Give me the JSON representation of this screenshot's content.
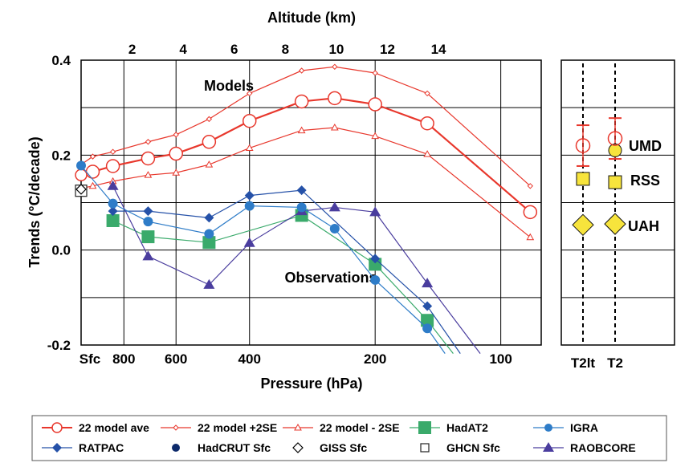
{
  "chart_data": {
    "type": "line",
    "xlabel": "Pressure (hPa)",
    "x2label": "Altitude (km)",
    "ylabel": "Trends (°C/decade)",
    "ylim": [
      -0.2,
      0.4
    ],
    "yticks": [
      {
        "value": 0.4,
        "label": "0.4"
      },
      {
        "value": 0.2,
        "label": "0.2"
      },
      {
        "value": 0.0,
        "label": "0.0"
      },
      {
        "value": -0.2,
        "label": "-0.2"
      }
    ],
    "xlim_hpa": [
      1013,
      80
    ],
    "xticks": [
      {
        "value": 1013,
        "label": "Sfc"
      },
      {
        "value": 800,
        "label": "800"
      },
      {
        "value": 600,
        "label": "600"
      },
      {
        "value": 400,
        "label": "400"
      },
      {
        "value": 200,
        "label": "200"
      },
      {
        "value": 100,
        "label": "100"
      }
    ],
    "x2ticks": [
      {
        "value": 2,
        "label": "2"
      },
      {
        "value": 4,
        "label": "4"
      },
      {
        "value": 6,
        "label": "6"
      },
      {
        "value": 8,
        "label": "8"
      },
      {
        "value": 10,
        "label": "10"
      },
      {
        "value": 12,
        "label": "12"
      },
      {
        "value": 14,
        "label": "14"
      }
    ],
    "annotations": {
      "models": "Models",
      "observations": "Observations"
    },
    "series": [
      {
        "name": "22 model ave",
        "color": "#e8372c",
        "marker": "circle-open-large",
        "line": "thick",
        "points": [
          [
            1013,
            0.158
          ],
          [
            950,
            0.165
          ],
          [
            850,
            0.177
          ],
          [
            700,
            0.193
          ],
          [
            600,
            0.203
          ],
          [
            500,
            0.228
          ],
          [
            400,
            0.272
          ],
          [
            300,
            0.313
          ],
          [
            250,
            0.32
          ],
          [
            200,
            0.307
          ],
          [
            150,
            0.267
          ],
          [
            85,
            0.08
          ]
        ]
      },
      {
        "name": "22 model +2SE",
        "color": "#e8372c",
        "marker": "diamond-open-small",
        "line": "thin",
        "points": [
          [
            1013,
            0.18
          ],
          [
            950,
            0.197
          ],
          [
            850,
            0.207
          ],
          [
            700,
            0.228
          ],
          [
            600,
            0.243
          ],
          [
            500,
            0.276
          ],
          [
            400,
            0.33
          ],
          [
            300,
            0.378
          ],
          [
            250,
            0.386
          ],
          [
            200,
            0.373
          ],
          [
            150,
            0.33
          ],
          [
            85,
            0.135
          ]
        ]
      },
      {
        "name": "22 model - 2SE",
        "color": "#e8372c",
        "marker": "triangle-open-small",
        "line": "thin",
        "points": [
          [
            1013,
            0.13
          ],
          [
            950,
            0.135
          ],
          [
            850,
            0.145
          ],
          [
            700,
            0.158
          ],
          [
            600,
            0.163
          ],
          [
            500,
            0.18
          ],
          [
            400,
            0.215
          ],
          [
            300,
            0.252
          ],
          [
            250,
            0.258
          ],
          [
            200,
            0.24
          ],
          [
            150,
            0.202
          ],
          [
            85,
            0.027
          ]
        ]
      },
      {
        "name": "HadAT2",
        "color": "#3aaa6b",
        "marker": "square-filled",
        "line": "thin",
        "points": [
          [
            850,
            0.062
          ],
          [
            700,
            0.028
          ],
          [
            500,
            0.016
          ],
          [
            300,
            0.073
          ],
          [
            200,
            -0.03
          ],
          [
            150,
            -0.148
          ],
          [
            130,
            -0.218
          ]
        ]
      },
      {
        "name": "IGRA",
        "color": "#2e7cc8",
        "marker": "circle-filled",
        "line": "thin",
        "points": [
          [
            1013,
            0.178
          ],
          [
            850,
            0.098
          ],
          [
            700,
            0.06
          ],
          [
            500,
            0.034
          ],
          [
            400,
            0.093
          ],
          [
            300,
            0.09
          ],
          [
            250,
            0.045
          ],
          [
            200,
            -0.063
          ],
          [
            150,
            -0.165
          ],
          [
            136,
            -0.218
          ]
        ]
      },
      {
        "name": "RATPAC",
        "color": "#2551a8",
        "marker": "diamond-filled",
        "line": "thin",
        "points": [
          [
            850,
            0.082
          ],
          [
            700,
            0.082
          ],
          [
            500,
            0.068
          ],
          [
            400,
            0.115
          ],
          [
            300,
            0.126
          ],
          [
            200,
            -0.018
          ],
          [
            150,
            -0.118
          ],
          [
            125,
            -0.218
          ]
        ]
      },
      {
        "name": "HadCRUT Sfc",
        "color": "#0d2a6b",
        "marker": "circle-filled-dark",
        "line": "none",
        "points": [
          [
            1013,
            0.125
          ]
        ]
      },
      {
        "name": "GISS Sfc",
        "color": "#000000",
        "marker": "diamond-open",
        "line": "none",
        "points": [
          [
            1013,
            0.128
          ]
        ]
      },
      {
        "name": "GHCN Sfc",
        "color": "#222222",
        "marker": "square-open",
        "line": "none",
        "points": [
          [
            1013,
            0.125
          ]
        ]
      },
      {
        "name": "RAOBCORE",
        "color": "#4a3d9e",
        "marker": "triangle-filled",
        "line": "thin",
        "points": [
          [
            850,
            0.135
          ],
          [
            700,
            -0.013
          ],
          [
            500,
            -0.073
          ],
          [
            400,
            0.015
          ],
          [
            300,
            0.082
          ],
          [
            250,
            0.09
          ],
          [
            200,
            0.08
          ],
          [
            150,
            -0.07
          ],
          [
            112,
            -0.218
          ]
        ]
      }
    ],
    "side_panel": {
      "columns": [
        {
          "label": "T2lt"
        },
        {
          "label": "T2"
        }
      ],
      "products": [
        {
          "name": "UMD",
          "T2": 0.21
        },
        {
          "name": "RSS",
          "T2lt": 0.15,
          "T2": 0.143
        },
        {
          "name": "UAH",
          "T2lt": 0.053,
          "T2": 0.055
        }
      ],
      "models": {
        "T2lt": {
          "mean": 0.22,
          "upper": 0.263,
          "lower": 0.177
        },
        "T2": {
          "mean": 0.235,
          "upper": 0.278,
          "lower": 0.192
        }
      },
      "colors": {
        "model": "#e8372c",
        "product": "#f7e43c",
        "product_edge": "#111111"
      }
    }
  }
}
